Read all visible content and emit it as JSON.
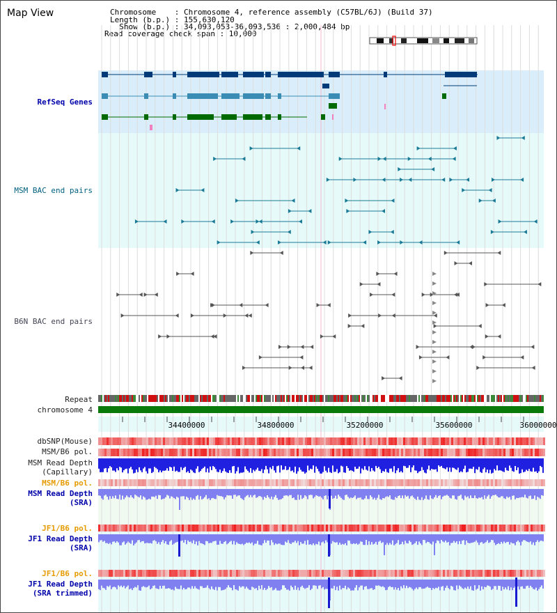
{
  "header": {
    "title": "Map View",
    "info_lines": [
      "Chromosome    : Chromosome 4, reference assembly (C57BL/6J) (Build 37)",
      "Length (b.p.) : 155,630,120",
      "  Show (b.p.) : 34,093,053-36,093,536 : 2,000,484 bp",
      "Read coverage check span : 10,000"
    ]
  },
  "tracks": {
    "refseq": "RefSeq Genes",
    "msm_bac": "MSM BAC end pairs",
    "b6n_bac": "B6N BAC end pairs",
    "repeat": "Repeat",
    "chromosome": "chromosome 4",
    "dbsnp": "dbSNP(Mouse)",
    "msm_b6_pol": "MSM/B6 pol.",
    "msm_depth_cap": "MSM Read Depth\n(Capillary)",
    "msm_b6_pol2": "MSM/B6 pol.",
    "msm_depth_sra": "MSM Read Depth\n(SRA)",
    "jf1_b6_pol": "JF1/B6 pol.",
    "jf1_depth_sra": "JF1 Read Depth\n(SRA)",
    "jf1_b6_pol2": "JF1/B6 pol.",
    "jf1_depth_trim": "JF1 Read Depth\n(SRA trimmed)"
  },
  "axis": {
    "ticks": [
      "34400000",
      "34800000",
      "35200000",
      "35600000",
      "36000000"
    ]
  },
  "colors": {
    "gene_dark": "#003a78",
    "gene_mid": "#3a8cb4",
    "gene_green": "#006a00",
    "refseq_bg": "#d9eefa",
    "msm_bg": "#e6fafa",
    "snp_red": "#e81010",
    "depth_blue": "#2020e0",
    "depth_light": "#8080f0"
  }
}
